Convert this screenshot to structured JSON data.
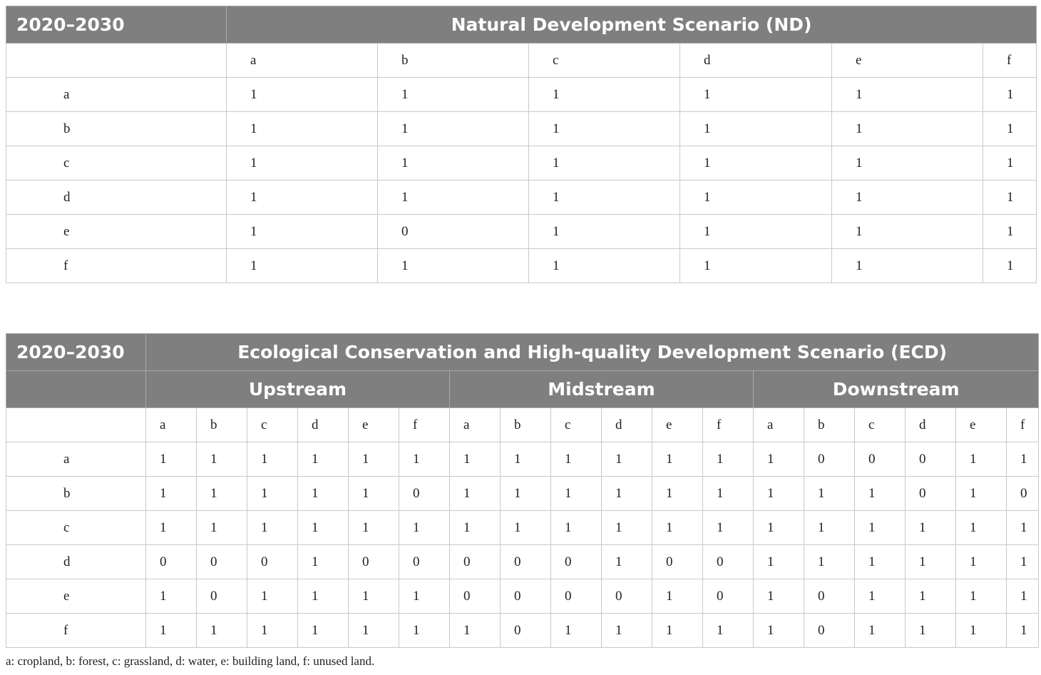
{
  "table1": {
    "period": "2020–2030",
    "scenario": "Natural Development Scenario (ND)",
    "columns": [
      "a",
      "b",
      "c",
      "d",
      "e",
      "f"
    ],
    "rows": [
      {
        "label": "a",
        "values": [
          "1",
          "1",
          "1",
          "1",
          "1",
          "1"
        ]
      },
      {
        "label": "b",
        "values": [
          "1",
          "1",
          "1",
          "1",
          "1",
          "1"
        ]
      },
      {
        "label": "c",
        "values": [
          "1",
          "1",
          "1",
          "1",
          "1",
          "1"
        ]
      },
      {
        "label": "d",
        "values": [
          "1",
          "1",
          "1",
          "1",
          "1",
          "1"
        ]
      },
      {
        "label": "e",
        "values": [
          "1",
          "0",
          "1",
          "1",
          "1",
          "1"
        ]
      },
      {
        "label": "f",
        "values": [
          "1",
          "1",
          "1",
          "1",
          "1",
          "1"
        ]
      }
    ]
  },
  "table2": {
    "period": "2020–2030",
    "scenario": "Ecological Conservation and High-quality Development Scenario (ECD)",
    "groups": [
      "Upstream",
      "Midstream",
      "Downstream"
    ],
    "columns": [
      "a",
      "b",
      "c",
      "d",
      "e",
      "f",
      "a",
      "b",
      "c",
      "d",
      "e",
      "f",
      "a",
      "b",
      "c",
      "d",
      "e",
      "f"
    ],
    "rows": [
      {
        "label": "a",
        "values": [
          "1",
          "1",
          "1",
          "1",
          "1",
          "1",
          "1",
          "1",
          "1",
          "1",
          "1",
          "1",
          "1",
          "0",
          "0",
          "0",
          "1",
          "1"
        ]
      },
      {
        "label": "b",
        "values": [
          "1",
          "1",
          "1",
          "1",
          "1",
          "0",
          "1",
          "1",
          "1",
          "1",
          "1",
          "1",
          "1",
          "1",
          "1",
          "0",
          "1",
          "0"
        ]
      },
      {
        "label": "c",
        "values": [
          "1",
          "1",
          "1",
          "1",
          "1",
          "1",
          "1",
          "1",
          "1",
          "1",
          "1",
          "1",
          "1",
          "1",
          "1",
          "1",
          "1",
          "1"
        ]
      },
      {
        "label": "d",
        "values": [
          "0",
          "0",
          "0",
          "1",
          "0",
          "0",
          "0",
          "0",
          "0",
          "1",
          "0",
          "0",
          "1",
          "1",
          "1",
          "1",
          "1",
          "1"
        ]
      },
      {
        "label": "e",
        "values": [
          "1",
          "0",
          "1",
          "1",
          "1",
          "1",
          "0",
          "0",
          "0",
          "0",
          "1",
          "0",
          "1",
          "0",
          "1",
          "1",
          "1",
          "1"
        ]
      },
      {
        "label": "f",
        "values": [
          "1",
          "1",
          "1",
          "1",
          "1",
          "1",
          "1",
          "0",
          "1",
          "1",
          "1",
          "1",
          "1",
          "0",
          "1",
          "1",
          "1",
          "1"
        ]
      }
    ]
  },
  "footnote": "a: cropland, b: forest, c: grassland, d: water, e: building land, f: unused land."
}
